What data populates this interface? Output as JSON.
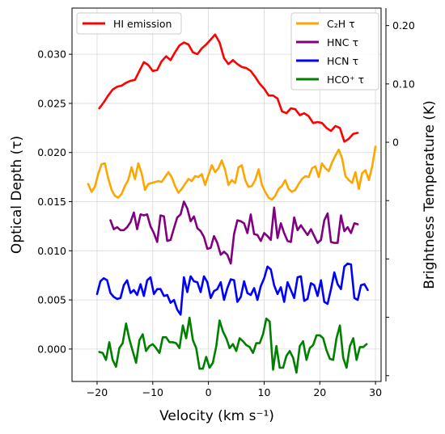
{
  "chart_data": {
    "type": "line",
    "xlabel": "Velocity (km s⁻¹)",
    "ylabel": "Optical Depth (τ)",
    "ylabel_right": "Brightness Temperature (K)",
    "xlim": [
      -24.5,
      31.0
    ],
    "ylim": [
      -0.0033,
      0.0347
    ],
    "ylim_right": [
      -0.41,
      0.23
    ],
    "grid": true,
    "x_ticks": [
      -20,
      -10,
      0,
      10,
      20,
      30
    ],
    "x_tick_labels": [
      "−20",
      "−10",
      "0",
      "10",
      "20",
      "30"
    ],
    "y_ticks": [
      0.0,
      0.005,
      0.01,
      0.015,
      0.02,
      0.025,
      0.03
    ],
    "y_tick_labels": [
      "0.000",
      "0.005",
      "0.010",
      "0.015",
      "0.020",
      "0.025",
      "0.030"
    ],
    "y_right_ticks": [
      0.2,
      0.1,
      0.0,
      -0.1,
      -0.2,
      -0.3,
      -0.4
    ],
    "y_right_tick_labels": [
      "0.20",
      "0.10",
      "0",
      "",
      "",
      "",
      ""
    ],
    "legend_left": {
      "placement": "upper-left",
      "entries": [
        "HI emission"
      ]
    },
    "legend_right": {
      "placement": "upper-right",
      "entries": [
        "C₂H τ",
        "HNC τ",
        "HCN τ",
        "HCO⁺ τ"
      ]
    },
    "series": [
      {
        "name": "HI emission",
        "color": "#ff0000",
        "x": [
          -19.6,
          -18.8,
          -18.0,
          -17.2,
          -16.4,
          -15.6,
          -14.8,
          -14.0,
          -13.2,
          -12.4,
          -11.6,
          -10.8,
          -10.0,
          -9.2,
          -8.4,
          -7.6,
          -6.8,
          -6.0,
          -5.2,
          -4.4,
          -3.6,
          -2.8,
          -2.0,
          -1.2,
          -0.4,
          0.4,
          1.2,
          2.0,
          2.8,
          3.6,
          4.4,
          5.2,
          6.0,
          6.8,
          7.6,
          8.4,
          9.2,
          10.0,
          10.8,
          11.6,
          12.4,
          13.2,
          14.0,
          14.8,
          15.6,
          16.4,
          17.2,
          18.0,
          18.8,
          19.6,
          20.4,
          21.2,
          22.0,
          22.8,
          23.6,
          24.4,
          25.2,
          26.0,
          26.8
        ],
        "values": [
          0.0245,
          0.0251,
          0.0258,
          0.0264,
          0.0267,
          0.0268,
          0.0271,
          0.0273,
          0.0274,
          0.0283,
          0.0292,
          0.0289,
          0.0283,
          0.0284,
          0.0293,
          0.0298,
          0.0294,
          0.0302,
          0.0309,
          0.0312,
          0.031,
          0.0302,
          0.03,
          0.0306,
          0.031,
          0.0315,
          0.032,
          0.0312,
          0.0296,
          0.029,
          0.0294,
          0.029,
          0.0287,
          0.0286,
          0.0283,
          0.0277,
          0.027,
          0.0265,
          0.0258,
          0.0258,
          0.0255,
          0.0242,
          0.024,
          0.0245,
          0.0244,
          0.0238,
          0.024,
          0.0237,
          0.023,
          0.0231,
          0.023,
          0.0225,
          0.0222,
          0.0227,
          0.0225,
          0.0211,
          0.0214,
          0.0219,
          0.022
        ]
      },
      {
        "name": "C₂H τ",
        "color": "#ffa500",
        "x": [
          -21.6,
          -21.0,
          -20.4,
          -19.8,
          -19.2,
          -18.6,
          -18.0,
          -17.4,
          -16.8,
          -16.2,
          -15.6,
          -15.0,
          -14.4,
          -13.8,
          -13.2,
          -12.6,
          -12.0,
          -11.4,
          -10.8,
          -10.2,
          -9.6,
          -9.0,
          -8.4,
          -7.8,
          -7.2,
          -6.6,
          -6.0,
          -5.4,
          -4.8,
          -4.2,
          -3.6,
          -3.0,
          -2.4,
          -1.8,
          -1.2,
          -0.6,
          0.0,
          0.6,
          1.2,
          1.8,
          2.4,
          3.0,
          3.6,
          4.2,
          4.8,
          5.4,
          6.0,
          6.6,
          7.2,
          7.8,
          8.4,
          9.0,
          9.6,
          10.2,
          10.8,
          11.4,
          12.0,
          12.6,
          13.2,
          13.8,
          14.4,
          15.0,
          15.6,
          16.2,
          16.8,
          17.4,
          18.0,
          18.6,
          19.2,
          19.8,
          20.4,
          21.0,
          21.6,
          22.2,
          22.8,
          23.4,
          24.0,
          24.6,
          25.2,
          25.8,
          26.4,
          27.0,
          27.6,
          28.2,
          28.8,
          29.4,
          30.0
        ],
        "values": [
          0.0168,
          0.016,
          0.0165,
          0.0178,
          0.0188,
          0.0189,
          0.0174,
          0.0162,
          0.0156,
          0.0154,
          0.0158,
          0.0166,
          0.0172,
          0.0185,
          0.0173,
          0.0189,
          0.0179,
          0.0162,
          0.0168,
          0.0169,
          0.017,
          0.0171,
          0.017,
          0.0175,
          0.018,
          0.0175,
          0.0166,
          0.0159,
          0.0163,
          0.0168,
          0.0173,
          0.0171,
          0.0176,
          0.0175,
          0.0178,
          0.0167,
          0.0177,
          0.0187,
          0.018,
          0.0184,
          0.0192,
          0.0182,
          0.0167,
          0.0172,
          0.0169,
          0.0185,
          0.0187,
          0.0172,
          0.0165,
          0.0166,
          0.0172,
          0.0183,
          0.0167,
          0.016,
          0.0154,
          0.0152,
          0.0156,
          0.0163,
          0.0166,
          0.0172,
          0.0163,
          0.016,
          0.0162,
          0.0168,
          0.0173,
          0.0176,
          0.0175,
          0.0184,
          0.0186,
          0.0175,
          0.0189,
          0.0184,
          0.0181,
          0.019,
          0.0197,
          0.0203,
          0.0194,
          0.0176,
          0.0172,
          0.0169,
          0.018,
          0.0163,
          0.0179,
          0.0182,
          0.0172,
          0.0186,
          0.0206
        ]
      },
      {
        "name": "HNC τ",
        "color": "#800080",
        "x": [
          -17.6,
          -17.0,
          -16.4,
          -15.8,
          -15.2,
          -14.6,
          -14.0,
          -13.4,
          -12.8,
          -12.2,
          -11.6,
          -11.0,
          -10.4,
          -9.8,
          -9.2,
          -8.6,
          -8.0,
          -7.4,
          -6.8,
          -6.2,
          -5.6,
          -5.0,
          -4.4,
          -3.8,
          -3.2,
          -2.6,
          -2.0,
          -1.4,
          -0.8,
          -0.2,
          0.4,
          1.0,
          1.6,
          2.2,
          2.8,
          3.4,
          4.0,
          4.6,
          5.2,
          5.8,
          6.4,
          7.0,
          7.6,
          8.2,
          8.8,
          9.4,
          10.0,
          10.6,
          11.2,
          11.8,
          12.4,
          13.0,
          13.6,
          14.2,
          14.8,
          15.4,
          16.0,
          16.6,
          17.2,
          17.8,
          18.4,
          19.0,
          19.6,
          20.2,
          20.8,
          21.4,
          22.0,
          22.6,
          23.2,
          23.8,
          24.4,
          25.0,
          25.6,
          26.2,
          26.8
        ],
        "values": [
          0.0131,
          0.0122,
          0.0124,
          0.0121,
          0.0121,
          0.0124,
          0.0129,
          0.0139,
          0.0122,
          0.0137,
          0.0136,
          0.0137,
          0.0125,
          0.0118,
          0.0109,
          0.0136,
          0.0135,
          0.011,
          0.0111,
          0.0123,
          0.0134,
          0.0137,
          0.015,
          0.0143,
          0.013,
          0.0135,
          0.0123,
          0.012,
          0.0114,
          0.0102,
          0.0103,
          0.0115,
          0.0108,
          0.0096,
          0.0099,
          0.0096,
          0.0087,
          0.0117,
          0.0131,
          0.013,
          0.0128,
          0.0118,
          0.0137,
          0.0117,
          0.0116,
          0.011,
          0.0118,
          0.0115,
          0.0111,
          0.0144,
          0.0113,
          0.0128,
          0.0118,
          0.011,
          0.0109,
          0.0134,
          0.0121,
          0.0126,
          0.0121,
          0.0116,
          0.0122,
          0.0115,
          0.0108,
          0.0111,
          0.0131,
          0.0138,
          0.0109,
          0.0108,
          0.0108,
          0.0136,
          0.012,
          0.0124,
          0.0118,
          0.0128,
          0.0127
        ]
      },
      {
        "name": "HCN τ",
        "color": "#0000ff",
        "x": [
          -20.0,
          -19.4,
          -18.8,
          -18.2,
          -17.6,
          -17.0,
          -16.4,
          -15.8,
          -15.2,
          -14.6,
          -14.0,
          -13.4,
          -12.8,
          -12.2,
          -11.6,
          -11.0,
          -10.4,
          -9.8,
          -9.2,
          -8.6,
          -8.0,
          -7.4,
          -6.8,
          -6.2,
          -5.6,
          -5.0,
          -4.4,
          -3.8,
          -3.2,
          -2.6,
          -2.0,
          -1.4,
          -0.8,
          -0.2,
          0.4,
          1.0,
          1.6,
          2.2,
          2.8,
          3.4,
          4.0,
          4.6,
          5.2,
          5.8,
          6.4,
          7.0,
          7.6,
          8.2,
          8.8,
          9.4,
          10.0,
          10.6,
          11.2,
          11.8,
          12.4,
          13.0,
          13.6,
          14.2,
          14.8,
          15.4,
          16.0,
          16.6,
          17.2,
          17.8,
          18.4,
          19.0,
          19.6,
          20.2,
          20.8,
          21.4,
          22.0,
          22.6,
          23.2,
          23.8,
          24.4,
          25.0,
          25.6,
          26.2,
          26.8,
          27.4,
          28.0,
          28.6
        ],
        "values": [
          0.0056,
          0.0069,
          0.0072,
          0.007,
          0.0057,
          0.0053,
          0.0051,
          0.0052,
          0.0065,
          0.007,
          0.0057,
          0.006,
          0.0055,
          0.0066,
          0.0054,
          0.007,
          0.0073,
          0.0056,
          0.0061,
          0.0061,
          0.0054,
          0.0055,
          0.0047,
          0.005,
          0.004,
          0.0035,
          0.0073,
          0.0058,
          0.0074,
          0.0069,
          0.0068,
          0.0058,
          0.0074,
          0.0068,
          0.0052,
          0.0059,
          0.0061,
          0.0068,
          0.005,
          0.0062,
          0.0071,
          0.007,
          0.0048,
          0.0053,
          0.0069,
          0.0057,
          0.0055,
          0.0062,
          0.005,
          0.0064,
          0.0072,
          0.0084,
          0.0081,
          0.0065,
          0.0056,
          0.0063,
          0.0048,
          0.0068,
          0.006,
          0.0052,
          0.0073,
          0.0074,
          0.0049,
          0.0051,
          0.0067,
          0.0065,
          0.0054,
          0.007,
          0.0048,
          0.0046,
          0.0061,
          0.0078,
          0.0066,
          0.0061,
          0.0084,
          0.0087,
          0.0086,
          0.0052,
          0.005,
          0.0065,
          0.0066,
          0.006
        ]
      },
      {
        "name": "HCO⁺ τ",
        "color": "#008000",
        "x": [
          -19.6,
          -19.0,
          -18.4,
          -17.8,
          -17.2,
          -16.6,
          -16.0,
          -15.4,
          -14.8,
          -14.2,
          -13.6,
          -13.0,
          -12.4,
          -11.8,
          -11.2,
          -10.6,
          -10.0,
          -9.4,
          -8.8,
          -8.2,
          -7.6,
          -7.0,
          -6.4,
          -5.8,
          -5.2,
          -4.6,
          -4.0,
          -3.4,
          -2.8,
          -2.2,
          -1.6,
          -1.0,
          -0.4,
          0.2,
          0.8,
          1.4,
          2.0,
          2.6,
          3.2,
          3.8,
          4.4,
          5.0,
          5.6,
          6.2,
          6.8,
          7.4,
          8.0,
          8.6,
          9.2,
          9.8,
          10.4,
          11.0,
          11.6,
          12.2,
          12.8,
          13.4,
          14.0,
          14.6,
          15.2,
          15.8,
          16.4,
          17.0,
          17.6,
          18.2,
          18.8,
          19.4,
          20.0,
          20.6,
          21.2,
          21.8,
          22.4,
          23.0,
          23.6,
          24.2,
          24.8,
          25.4,
          26.0,
          26.6,
          27.2,
          27.8,
          28.4
        ],
        "values": [
          -0.0003,
          -0.0004,
          -0.0011,
          0.0007,
          -0.0011,
          -0.0018,
          0.0001,
          0.0006,
          0.0026,
          0.001,
          -0.0002,
          -0.0014,
          0.0009,
          0.0015,
          -0.0002,
          0.0003,
          0.0005,
          0.0001,
          -0.0004,
          0.0012,
          0.0012,
          0.0007,
          0.0007,
          0.0006,
          0.0001,
          0.0024,
          0.0011,
          0.0032,
          0.0009,
          0.0001,
          -0.002,
          -0.002,
          -0.0008,
          -0.0019,
          -0.0014,
          0.0003,
          0.0029,
          0.0018,
          0.0011,
          0.0001,
          0.0005,
          -0.0002,
          0.0011,
          0.0008,
          0.0004,
          0.0002,
          -0.0004,
          0.0006,
          0.0006,
          0.0015,
          0.0031,
          0.0028,
          -0.0021,
          0.0003,
          -0.0019,
          -0.0019,
          -0.0007,
          -0.0002,
          -0.0009,
          -0.0024,
          0.0003,
          0.0008,
          -0.0011,
          0.0001,
          0.0004,
          0.0014,
          0.0014,
          0.0011,
          -0.0001,
          -0.001,
          -0.0011,
          0.0011,
          0.0024,
          -0.0009,
          -0.0019,
          0.0003,
          0.0011,
          -0.0011,
          0.0002,
          0.0002,
          0.0005
        ]
      }
    ]
  }
}
